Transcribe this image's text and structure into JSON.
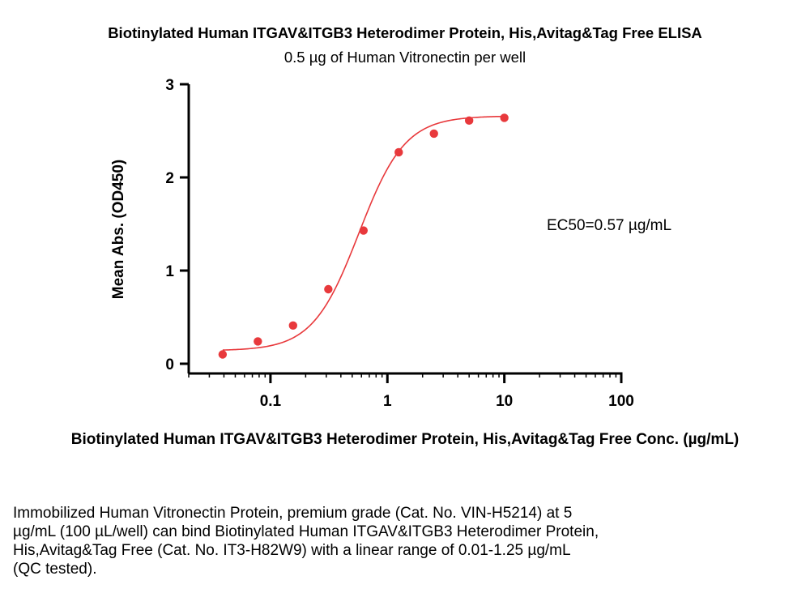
{
  "chart_data": {
    "type": "scatter",
    "title": "Biotinylated Human ITGAV&ITGB3 Heterodimer Protein, His,Avitag&Tag Free ELISA",
    "subtitle": "0.5 µg of Human Vitronectin per well",
    "xlabel": "Biotinylated Human ITGAV&ITGB3 Heterodimer Protein, His,Avitag&Tag Free Conc. (µg/mL)",
    "ylabel": "Mean Abs. (OD450)",
    "x_scale": "log",
    "xlim": [
      0.02,
      100
    ],
    "ylim": [
      0,
      3
    ],
    "x_ticks": [
      0.1,
      1,
      10,
      100
    ],
    "x_tick_labels": [
      "0.1",
      "1",
      "10",
      "100"
    ],
    "y_ticks": [
      0,
      1,
      2,
      3
    ],
    "y_tick_labels": [
      "0",
      "1",
      "2",
      "3"
    ],
    "grid": false,
    "annotation": "EC50=0.57 µg/mL",
    "color": "#e8393c",
    "points": [
      {
        "x": 0.039,
        "y": 0.1
      },
      {
        "x": 0.078,
        "y": 0.24
      },
      {
        "x": 0.156,
        "y": 0.41
      },
      {
        "x": 0.3125,
        "y": 0.8
      },
      {
        "x": 0.625,
        "y": 1.43
      },
      {
        "x": 1.25,
        "y": 2.27
      },
      {
        "x": 2.5,
        "y": 2.47
      },
      {
        "x": 5,
        "y": 2.61
      },
      {
        "x": 10,
        "y": 2.64
      }
    ],
    "fit": {
      "bottom": 0.14,
      "top": 2.66,
      "ec50": 0.57,
      "hill": 2.2
    }
  },
  "caption_lines": [
    "Immobilized Human Vitronectin Protein, premium grade (Cat. No. VIN-H5214) at 5",
    "µg/mL (100 µL/well) can bind Biotinylated Human ITGAV&ITGB3 Heterodimer Protein,",
    "His,Avitag&Tag Free (Cat. No. IT3-H82W9) with a linear range of 0.01-1.25 µg/mL",
    "(QC tested)."
  ]
}
